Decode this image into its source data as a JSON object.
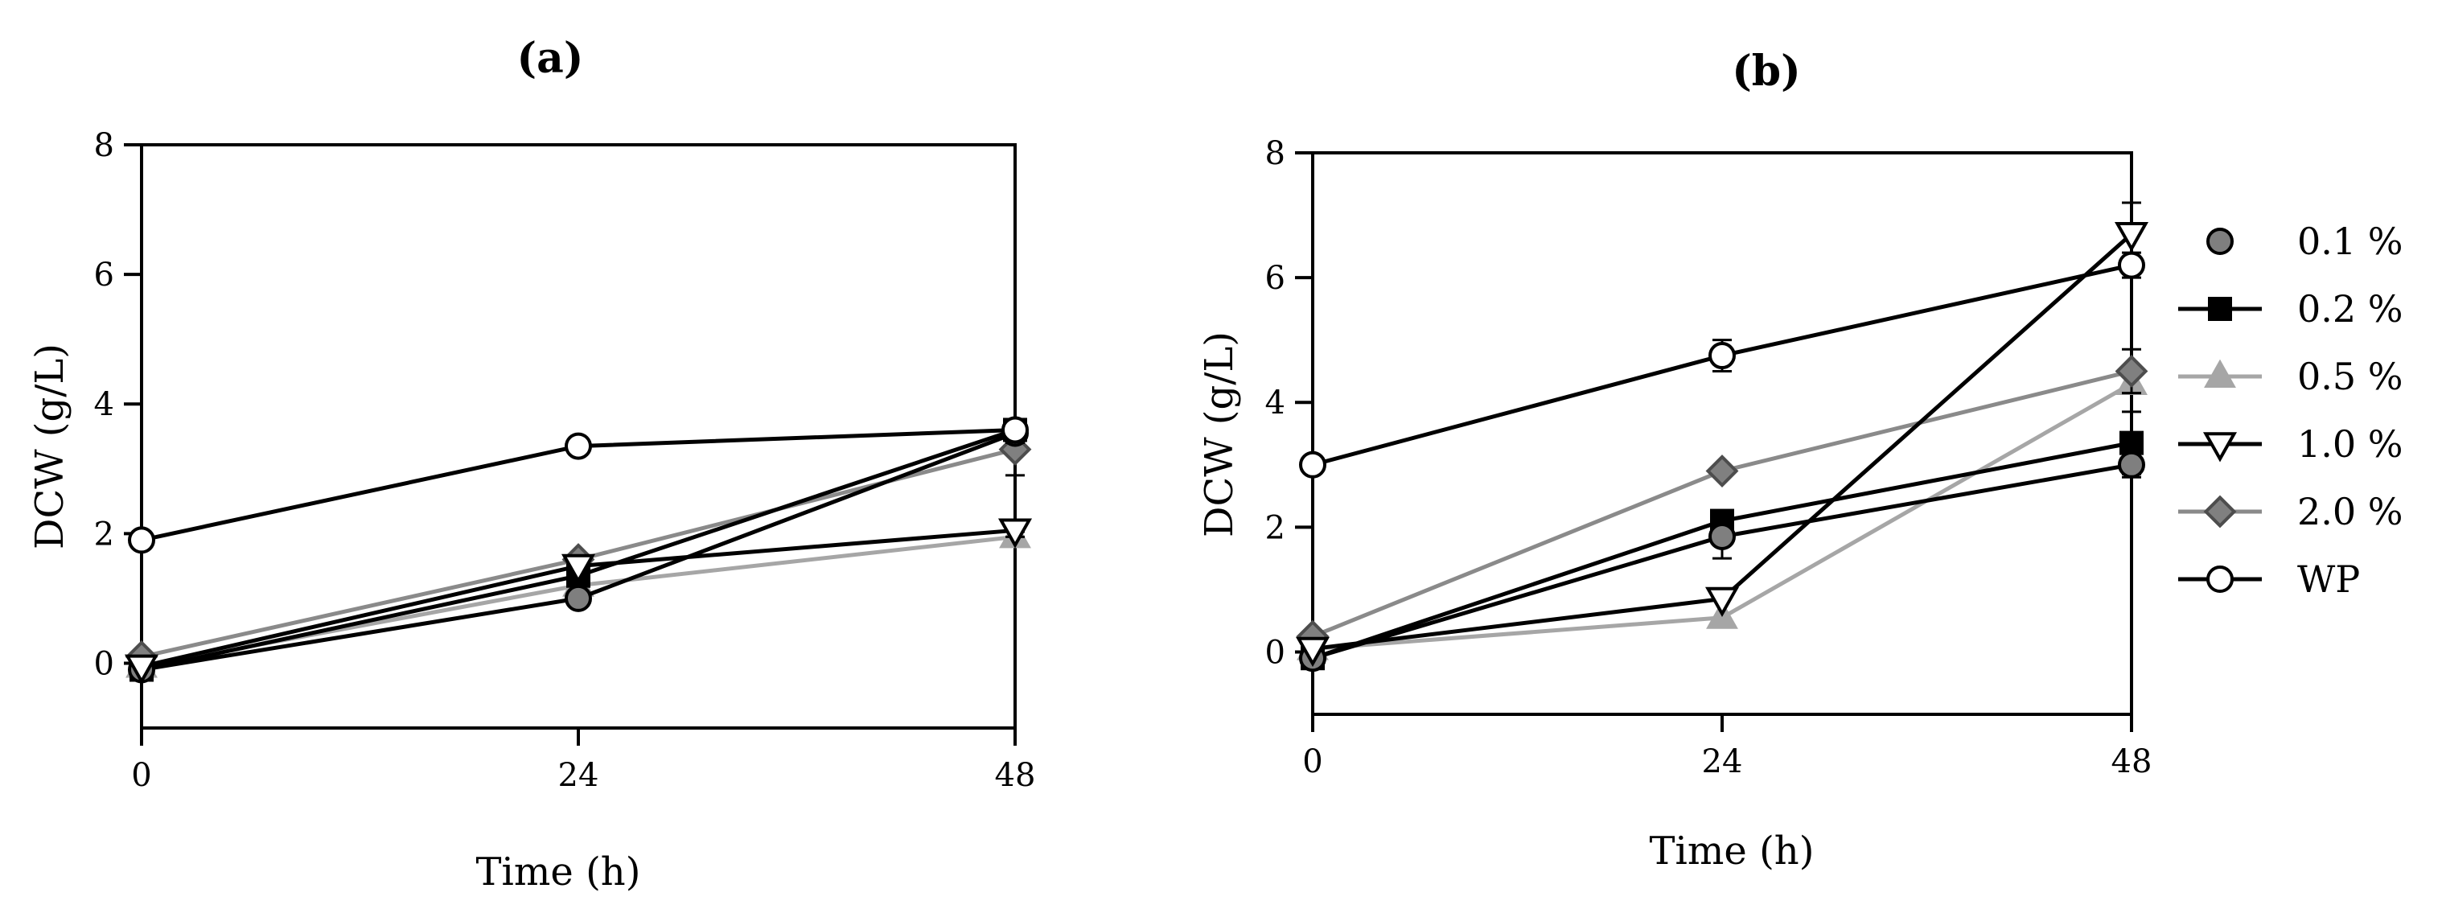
{
  "chart_data": [
    {
      "type": "line",
      "panel_label": "(a)",
      "xlabel": "Time (h)",
      "ylabel": "DCW (g/L)",
      "x": [
        0,
        24,
        48
      ],
      "x_ticks": [
        "0",
        "24",
        "48"
      ],
      "y_ticks": [
        "0",
        "2",
        "4",
        "6",
        "8"
      ],
      "xlim": [
        0,
        48
      ],
      "ylim": [
        -1,
        8
      ],
      "grid": false,
      "series": [
        {
          "name": "0.1 %",
          "y": [
            -0.1,
            1.0,
            3.55
          ],
          "err": [
            0.08,
            0.08,
            0.15
          ]
        },
        {
          "name": "0.2 %",
          "y": [
            -0.1,
            1.35,
            3.6
          ],
          "err": [
            0.05,
            0.05,
            0.15
          ]
        },
        {
          "name": "0.5 %",
          "y": [
            -0.05,
            1.2,
            1.95
          ],
          "err": [
            0.05,
            0.05,
            0.08
          ]
        },
        {
          "name": "1.0 %",
          "y": [
            -0.05,
            1.5,
            2.05
          ],
          "err": [
            0.05,
            0.05,
            0.1
          ]
        },
        {
          "name": "2.0 %",
          "y": [
            0.1,
            1.6,
            3.3
          ],
          "err": [
            0.05,
            0.05,
            0.4
          ]
        },
        {
          "name": "WP",
          "y": [
            1.9,
            3.35,
            3.6
          ],
          "err": [
            0.1,
            0.05,
            0.1
          ]
        }
      ]
    },
    {
      "type": "line",
      "panel_label": "(b)",
      "xlabel": "Time (h)",
      "ylabel": "DCW (g/L)",
      "x": [
        0,
        24,
        48
      ],
      "x_ticks": [
        "0",
        "24",
        "48"
      ],
      "y_ticks": [
        "0",
        "2",
        "4",
        "6",
        "8"
      ],
      "xlim": [
        0,
        48
      ],
      "ylim": [
        -1,
        8
      ],
      "grid": false,
      "series": [
        {
          "name": "0.1 %",
          "y": [
            -0.1,
            1.85,
            3.0
          ],
          "err": [
            0.08,
            0.35,
            0.2
          ]
        },
        {
          "name": "0.2 %",
          "y": [
            -0.1,
            2.1,
            3.35
          ],
          "err": [
            0.05,
            0.1,
            0.5
          ]
        },
        {
          "name": "0.5 %",
          "y": [
            0.05,
            0.55,
            4.3
          ],
          "err": [
            0.05,
            0.05,
            0.15
          ]
        },
        {
          "name": "1.0 %",
          "y": [
            0.05,
            0.85,
            6.7
          ],
          "err": [
            0.05,
            0.05,
            0.5
          ]
        },
        {
          "name": "2.0 %",
          "y": [
            0.25,
            2.9,
            4.5
          ],
          "err": [
            0.05,
            0.05,
            0.35
          ]
        },
        {
          "name": "WP",
          "y": [
            3.0,
            4.75,
            6.2
          ],
          "err": [
            0.05,
            0.25,
            0.2
          ]
        }
      ]
    }
  ],
  "legend": {
    "placement": "right",
    "items": [
      {
        "label": "0.1 %",
        "marker": "circle-filled-gray",
        "color": "#7f7f7f"
      },
      {
        "label": "0.2 %",
        "marker": "square-filled-black",
        "color": "#000000"
      },
      {
        "label": "0.5 %",
        "marker": "triangle-up-filled-lightgray",
        "color": "#a6a6a6"
      },
      {
        "label": "1.0 %",
        "marker": "triangle-down-open",
        "color": "#000000"
      },
      {
        "label": "2.0 %",
        "marker": "diamond-filled-gray",
        "color": "#808080"
      },
      {
        "label": "WP",
        "marker": "circle-open",
        "color": "#000000"
      }
    ]
  }
}
